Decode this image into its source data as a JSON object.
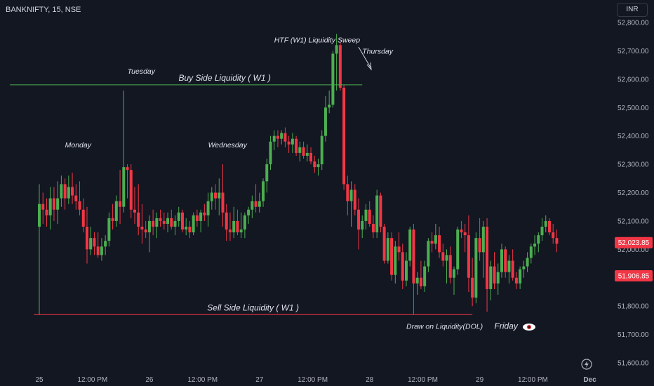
{
  "header": {
    "symbol": "BANKNIFTY, 15, NSE",
    "currency": "INR"
  },
  "colors": {
    "background": "#131722",
    "up": "#26a69a",
    "up_body": "#4caf50",
    "down": "#f23645",
    "buy_line": "#4caf50",
    "sell_line": "#f23645"
  },
  "chart_data": {
    "type": "candlestick",
    "ylim": [
      51600,
      52800
    ],
    "yticks": [
      "52,800.00",
      "52,700.00",
      "52,600.00",
      "52,500.00",
      "52,400.00",
      "52,300.00",
      "52,200.00",
      "52,100.00",
      "52,000.00",
      "51,900.00",
      "51,800.00",
      "51,700.00",
      "51,600.00"
    ],
    "ytick_values": [
      52800,
      52700,
      52600,
      52500,
      52400,
      52300,
      52200,
      52100,
      52000,
      51900,
      51800,
      51700,
      51600
    ],
    "xticks": [
      {
        "label": "25",
        "t": 0
      },
      {
        "label": "12:00 PM",
        "t": 14.5
      },
      {
        "label": "26",
        "t": 30
      },
      {
        "label": "12:00 PM",
        "t": 44.5
      },
      {
        "label": "27",
        "t": 60
      },
      {
        "label": "12:00 PM",
        "t": 74.5
      },
      {
        "label": "28",
        "t": 90
      },
      {
        "label": "12:00 PM",
        "t": 104.5
      },
      {
        "label": "29",
        "t": 120
      },
      {
        "label": "12:00 PM",
        "t": 134.5
      },
      {
        "label": "Dec",
        "t": 150
      }
    ],
    "candles": [
      [
        52080,
        52230,
        51770,
        52160
      ],
      [
        52160,
        52200,
        52090,
        52140
      ],
      [
        52140,
        52180,
        52080,
        52120
      ],
      [
        52120,
        52220,
        52070,
        52180
      ],
      [
        52180,
        52220,
        52100,
        52140
      ],
      [
        52140,
        52240,
        52090,
        52180
      ],
      [
        52180,
        52260,
        52150,
        52230
      ],
      [
        52230,
        52250,
        52140,
        52180
      ],
      [
        52180,
        52260,
        52160,
        52220
      ],
      [
        52220,
        52270,
        52160,
        52190
      ],
      [
        52190,
        52230,
        52140,
        52170
      ],
      [
        52170,
        52240,
        52120,
        52140
      ],
      [
        52140,
        52180,
        52060,
        52080
      ],
      [
        52080,
        52150,
        51950,
        52000
      ],
      [
        52000,
        52080,
        51980,
        52040
      ],
      [
        52040,
        52060,
        51980,
        52010
      ],
      [
        52010,
        52060,
        51970,
        51980
      ],
      [
        51980,
        52040,
        51960,
        52010
      ],
      [
        52010,
        52050,
        51980,
        52030
      ],
      [
        52030,
        52130,
        52010,
        52110
      ],
      [
        52110,
        52160,
        52070,
        52100
      ],
      [
        52100,
        52190,
        52080,
        52170
      ],
      [
        52170,
        52280,
        52090,
        52150
      ],
      [
        52150,
        52560,
        52130,
        52290
      ],
      [
        52290,
        52300,
        52180,
        52280
      ],
      [
        52280,
        52300,
        52110,
        52140
      ],
      [
        52140,
        52220,
        52090,
        52130
      ],
      [
        52130,
        52230,
        52050,
        52080
      ],
      [
        52080,
        52160,
        52020,
        52070
      ],
      [
        52070,
        52100,
        52040,
        52060
      ],
      [
        52060,
        52120,
        51990,
        52100
      ],
      [
        52100,
        52140,
        52050,
        52080
      ],
      [
        52080,
        52130,
        52040,
        52110
      ],
      [
        52110,
        52140,
        52080,
        52100
      ],
      [
        52100,
        52130,
        52070,
        52090
      ],
      [
        52090,
        52130,
        52060,
        52110
      ],
      [
        52110,
        52140,
        52070,
        52080
      ],
      [
        52080,
        52120,
        52050,
        52100
      ],
      [
        52100,
        52150,
        52080,
        52130
      ],
      [
        52130,
        52140,
        52060,
        52070
      ],
      [
        52070,
        52110,
        52050,
        52080
      ],
      [
        52080,
        52100,
        52040,
        52060
      ],
      [
        52060,
        52130,
        52050,
        52120
      ],
      [
        52120,
        52140,
        52080,
        52100
      ],
      [
        52100,
        52140,
        52060,
        52130
      ],
      [
        52130,
        52160,
        52100,
        52120
      ],
      [
        52120,
        52200,
        52080,
        52170
      ],
      [
        52170,
        52220,
        52140,
        52200
      ],
      [
        52200,
        52230,
        52140,
        52180
      ],
      [
        52180,
        52250,
        52120,
        52200
      ],
      [
        52200,
        52300,
        52080,
        52130
      ],
      [
        52130,
        52160,
        52030,
        52070
      ],
      [
        52070,
        52130,
        52030,
        52060
      ],
      [
        52060,
        52150,
        52040,
        52100
      ],
      [
        52100,
        52140,
        52050,
        52060
      ],
      [
        52060,
        52130,
        52040,
        52070
      ],
      [
        52070,
        52130,
        52040,
        52120
      ],
      [
        52120,
        52150,
        52090,
        52140
      ],
      [
        52140,
        52190,
        52110,
        52170
      ],
      [
        52170,
        52230,
        52130,
        52150
      ],
      [
        52150,
        52200,
        52130,
        52170
      ],
      [
        52170,
        52250,
        52150,
        52240
      ],
      [
        52240,
        52320,
        52200,
        52300
      ],
      [
        52300,
        52400,
        52280,
        52380
      ],
      [
        52380,
        52420,
        52350,
        52400
      ],
      [
        52400,
        52420,
        52360,
        52390
      ],
      [
        52390,
        52420,
        52370,
        52410
      ],
      [
        52410,
        52430,
        52360,
        52380
      ],
      [
        52380,
        52400,
        52340,
        52370
      ],
      [
        52370,
        52410,
        52340,
        52390
      ],
      [
        52390,
        52400,
        52330,
        52340
      ],
      [
        52340,
        52380,
        52310,
        52360
      ],
      [
        52360,
        52380,
        52320,
        52330
      ],
      [
        52330,
        52370,
        52310,
        52340
      ],
      [
        52340,
        52360,
        52300,
        52310
      ],
      [
        52310,
        52330,
        52270,
        52290
      ],
      [
        52290,
        52320,
        52260,
        52300
      ],
      [
        52300,
        52420,
        52280,
        52400
      ],
      [
        52400,
        52540,
        52380,
        52500
      ],
      [
        52500,
        52560,
        52480,
        52510
      ],
      [
        52510,
        52700,
        52500,
        52690
      ],
      [
        52690,
        52760,
        52560,
        52720
      ],
      [
        52720,
        52730,
        52560,
        52570
      ],
      [
        52570,
        52580,
        52210,
        52230
      ],
      [
        52230,
        52260,
        52120,
        52170
      ],
      [
        52170,
        52240,
        52080,
        52210
      ],
      [
        52210,
        52230,
        52120,
        52140
      ],
      [
        52140,
        52180,
        52000,
        52070
      ],
      [
        52070,
        52120,
        52040,
        52100
      ],
      [
        52100,
        52160,
        52070,
        52140
      ],
      [
        52140,
        52170,
        52080,
        52090
      ],
      [
        52090,
        52120,
        52040,
        52060
      ],
      [
        52060,
        52210,
        52040,
        52190
      ],
      [
        52190,
        52200,
        52060,
        52080
      ],
      [
        52080,
        52090,
        51950,
        51960
      ],
      [
        51960,
        52060,
        51950,
        52040
      ],
      [
        52040,
        52060,
        51890,
        51910
      ],
      [
        51910,
        52030,
        51880,
        52010
      ],
      [
        52010,
        52060,
        51960,
        51990
      ],
      [
        51990,
        52020,
        51860,
        51890
      ],
      [
        51890,
        51990,
        51870,
        51960
      ],
      [
        51960,
        52080,
        51940,
        52070
      ],
      [
        52070,
        52090,
        51770,
        51880
      ],
      [
        51880,
        51920,
        51840,
        51900
      ],
      [
        51900,
        51960,
        51860,
        51870
      ],
      [
        51870,
        51960,
        51850,
        51940
      ],
      [
        51940,
        52040,
        51920,
        52030
      ],
      [
        52030,
        52060,
        51990,
        52020
      ],
      [
        52020,
        52090,
        52000,
        52050
      ],
      [
        52050,
        52080,
        51970,
        51990
      ],
      [
        51990,
        52020,
        51940,
        51960
      ],
      [
        51960,
        52000,
        51880,
        51980
      ],
      [
        51980,
        52010,
        51880,
        51900
      ],
      [
        51900,
        51940,
        51840,
        51930
      ],
      [
        51930,
        52080,
        51910,
        52070
      ],
      [
        52070,
        52100,
        52040,
        52060
      ],
      [
        52060,
        52090,
        51990,
        52050
      ],
      [
        52050,
        52120,
        51850,
        51900
      ],
      [
        51900,
        51970,
        51800,
        51830
      ],
      [
        51830,
        52060,
        51810,
        52040
      ],
      [
        52040,
        52110,
        51960,
        51990
      ],
      [
        51990,
        52100,
        51900,
        52080
      ],
      [
        52080,
        52110,
        51780,
        51860
      ],
      [
        51860,
        51960,
        51820,
        51940
      ],
      [
        51940,
        51990,
        51860,
        51880
      ],
      [
        51880,
        51950,
        51840,
        51920
      ],
      [
        51920,
        52020,
        51900,
        52000
      ],
      [
        52000,
        52010,
        51900,
        51920
      ],
      [
        51920,
        51980,
        51880,
        51960
      ],
      [
        51960,
        52000,
        51890,
        51900
      ],
      [
        51900,
        51920,
        51860,
        51880
      ],
      [
        51880,
        51940,
        51860,
        51930
      ],
      [
        51930,
        51960,
        51900,
        51940
      ],
      [
        51940,
        51990,
        51920,
        51970
      ],
      [
        51970,
        52020,
        51950,
        52010
      ],
      [
        52010,
        52050,
        51980,
        52020
      ],
      [
        52020,
        52060,
        51990,
        52050
      ],
      [
        52050,
        52110,
        52030,
        52080
      ],
      [
        52080,
        52120,
        52060,
        52100
      ],
      [
        52100,
        52110,
        52050,
        52060
      ],
      [
        52060,
        52090,
        52020,
        52040
      ],
      [
        52040,
        52070,
        51990,
        52020
      ]
    ],
    "levels": [
      {
        "label": "Buy Side Liquidity ( W1 )",
        "price": 52580,
        "t_start": -8,
        "t_end": 88
      },
      {
        "label": "Sell Side Liquidity ( W1 )",
        "price": 51770,
        "t_start": -1.5,
        "t_end": 118
      }
    ],
    "annotations": [
      {
        "text": "Monday",
        "t": 7,
        "price": 52360
      },
      {
        "text": "Tuesday",
        "t": 24,
        "price": 52620
      },
      {
        "text": "Wednesday",
        "t": 46,
        "price": 52360
      },
      {
        "text": "HTF (W1) Liquidity Sweep",
        "t": 64,
        "price": 52730
      },
      {
        "text": "Thursday",
        "t": 88,
        "price": 52690
      },
      {
        "text": "Draw on Liquidity(DOL)",
        "t": 100,
        "price": 51720
      },
      {
        "text": "Friday",
        "t": 124,
        "price": 51720
      }
    ],
    "price_labels": [
      {
        "text": "52,023.85",
        "price": 52023.85,
        "color": "#f23645"
      },
      {
        "text": "51,906.85",
        "price": 51906.85,
        "color": "#f23645"
      }
    ]
  }
}
